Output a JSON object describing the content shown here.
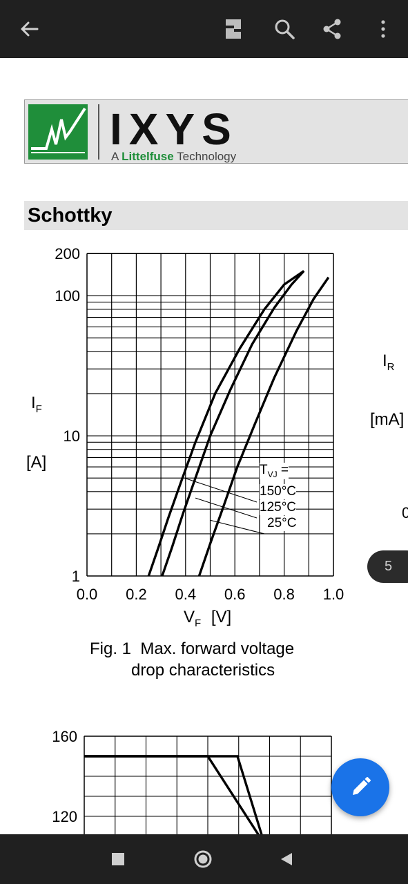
{
  "toolbar": {
    "back_icon": "arrow-left-icon",
    "actions": [
      "document-view-icon",
      "search-icon",
      "share-icon",
      "more-vert-icon"
    ]
  },
  "logo": {
    "brand": "IXYS",
    "tagline_prefix": "A",
    "tagline_brand": "Littelfuse",
    "tagline_suffix": "Technology",
    "brand_color": "#1f8e3a"
  },
  "section": {
    "title": "Schottky"
  },
  "right_cut_labels": {
    "ir_main": "I",
    "ir_sub": "R",
    "unit": "[mA]",
    "tick": "0"
  },
  "page_indicator": "5",
  "figure1": {
    "caption_line1": "Fig. 1  Max. forward voltage",
    "caption_line2": "         drop characteristics"
  },
  "chart_data": [
    {
      "type": "line",
      "title": "",
      "xlabel_main": "V",
      "xlabel_sub": "F",
      "xlabel_unit": "[V]",
      "ylabel_main": "I",
      "ylabel_sub": "F",
      "ylabel_unit": "[A]",
      "xlim": [
        0.0,
        1.0
      ],
      "ylim": [
        1,
        200
      ],
      "y_scale": "log",
      "grid": true,
      "x_ticks": [
        "0.0",
        "0.2",
        "0.4",
        "0.6",
        "0.8",
        "1.0"
      ],
      "y_ticks": [
        "1",
        "10",
        "100",
        "200"
      ],
      "legend_header_main": "T",
      "legend_header_sub": "VJ",
      "legend_header_suffix": " =",
      "series": [
        {
          "name": "150°C",
          "x": [
            0.25,
            0.29,
            0.33,
            0.38,
            0.44,
            0.52,
            0.62,
            0.72,
            0.8,
            0.88
          ],
          "y": [
            1,
            1.6,
            2.6,
            4.6,
            9,
            20,
            42,
            80,
            120,
            150
          ]
        },
        {
          "name": "125°C",
          "x": [
            0.305,
            0.345,
            0.39,
            0.44,
            0.5,
            0.58,
            0.67,
            0.76,
            0.83,
            0.88
          ],
          "y": [
            1,
            1.6,
            2.8,
            5,
            10,
            21,
            45,
            82,
            120,
            150
          ]
        },
        {
          "name": "25°C",
          "x": [
            0.455,
            0.5,
            0.55,
            0.61,
            0.68,
            0.76,
            0.85,
            0.92,
            0.98
          ],
          "y": [
            1,
            1.7,
            3,
            6,
            12,
            26,
            56,
            95,
            135
          ]
        }
      ]
    },
    {
      "type": "line",
      "title": "",
      "y_ticks": [
        "160",
        "120"
      ],
      "ylim_visible": [
        106,
        160
      ],
      "x_fraction": true,
      "series": [
        {
          "x": [
            0.0,
            0.5,
            0.73
          ],
          "y": [
            150,
            150,
            106
          ]
        },
        {
          "x": [
            0.0,
            0.62,
            0.73
          ],
          "y": [
            150,
            150,
            106
          ]
        }
      ]
    }
  ]
}
